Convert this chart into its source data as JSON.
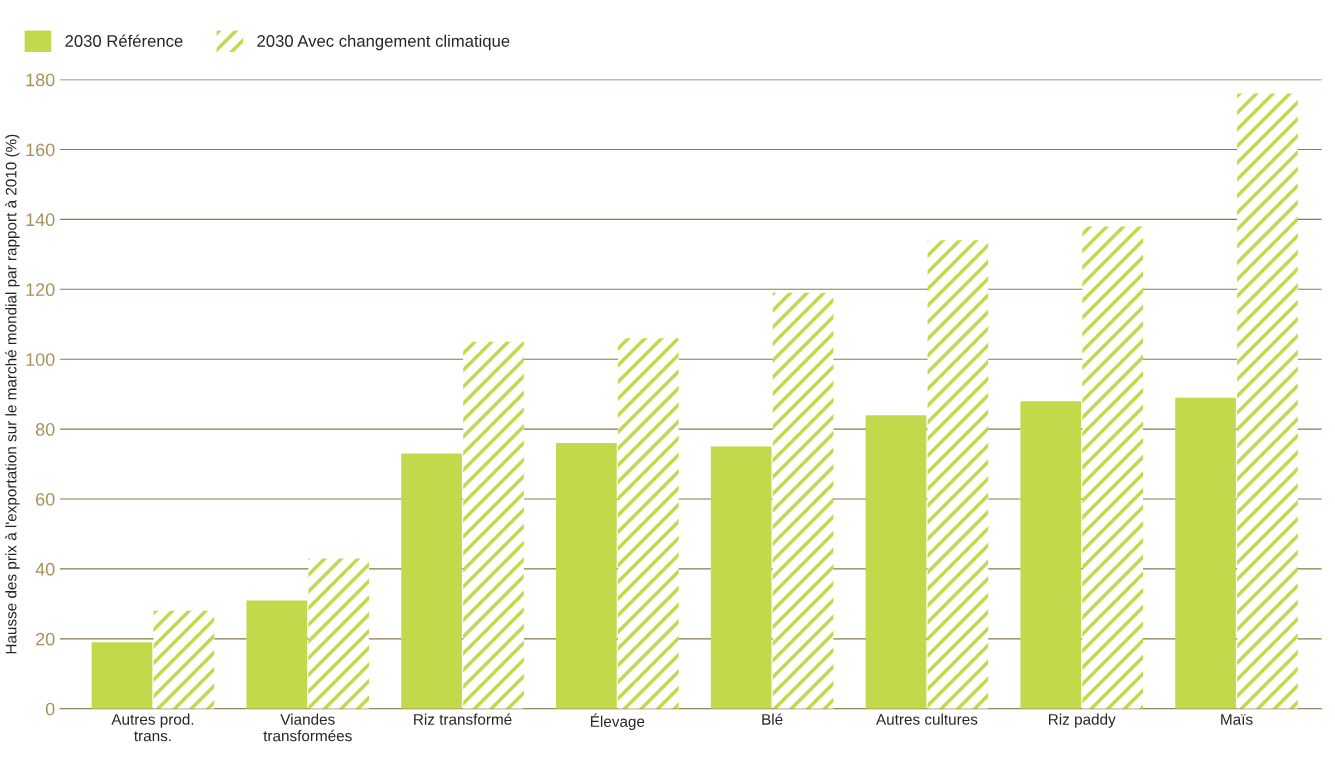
{
  "chart_data": {
    "type": "bar",
    "ylabel": "Hausse des prix à l'exportation sur le marché mondial par rapport à 2010 (%)",
    "categories": [
      "Autres prod.\ntrans.",
      "Viandes\ntransformées",
      "Riz transformé",
      "Élevage",
      "Blé",
      "Autres cultures",
      "Riz paddy",
      "Maïs"
    ],
    "series": [
      {
        "name": "2030 Référence",
        "color": "#c2d94c",
        "values": [
          19,
          31,
          73,
          76,
          75,
          84,
          88,
          89
        ]
      },
      {
        "name": "2030 Avec changement climatique",
        "color": "#c2d94c",
        "values": [
          28,
          43,
          105,
          106,
          119,
          134,
          138,
          176
        ]
      }
    ],
    "ylim": [
      0,
      180
    ],
    "yticks": [
      0,
      20,
      40,
      60,
      80,
      100,
      120,
      140,
      160,
      180
    ],
    "grid": "y",
    "legend": "top left"
  }
}
